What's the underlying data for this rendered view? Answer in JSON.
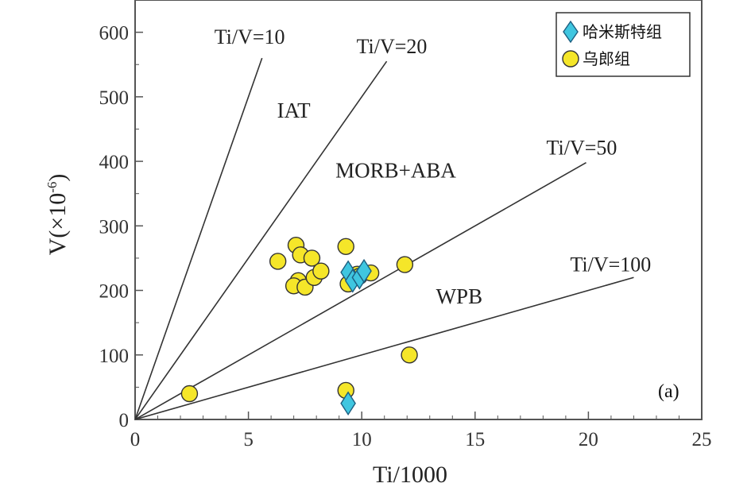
{
  "chart_data": {
    "type": "scatter",
    "title": "",
    "xlabel": "Ti/1000",
    "ylabel_prefix": "V(×10",
    "ylabel_exp": "-6",
    "ylabel_suffix": ")",
    "xlim": [
      0,
      25
    ],
    "ylim": [
      0,
      650
    ],
    "xticks": [
      0,
      5,
      10,
      15,
      20,
      25
    ],
    "yticks": [
      0,
      100,
      200,
      300,
      400,
      500,
      600
    ],
    "panel_label": "(a)",
    "ratio_lines": [
      {
        "label": "Ti/V=10",
        "ratio": 10,
        "x_end": 5.6
      },
      {
        "label": "Ti/V=20",
        "ratio": 20,
        "x_end": 11.1
      },
      {
        "label": "Ti/V=50",
        "ratio": 50,
        "x_end": 19.9
      },
      {
        "label": "Ti/V=100",
        "ratio": 100,
        "x_end": 22.0
      }
    ],
    "fields": [
      {
        "label": "IAT",
        "x": 7.0,
        "y": 468
      },
      {
        "label": "MORB+ABA",
        "x": 11.5,
        "y": 375
      },
      {
        "label": "WPB",
        "x": 14.3,
        "y": 180
      }
    ],
    "series": [
      {
        "name": "哈米斯特组",
        "marker": "diamond",
        "color": "#3fc6e0",
        "points": [
          [
            9.4,
            228
          ],
          [
            9.6,
            215
          ],
          [
            9.9,
            220
          ],
          [
            10.1,
            230
          ],
          [
            9.4,
            25
          ]
        ]
      },
      {
        "name": "乌郎组",
        "marker": "circle",
        "color": "#f5e629",
        "points": [
          [
            6.3,
            245
          ],
          [
            7.1,
            270
          ],
          [
            7.3,
            255
          ],
          [
            7.2,
            215
          ],
          [
            7.0,
            207
          ],
          [
            7.5,
            205
          ],
          [
            7.8,
            250
          ],
          [
            7.9,
            220
          ],
          [
            8.2,
            230
          ],
          [
            9.3,
            268
          ],
          [
            9.4,
            210
          ],
          [
            9.8,
            225
          ],
          [
            9.9,
            222
          ],
          [
            10.4,
            227
          ],
          [
            11.9,
            240
          ],
          [
            12.1,
            100
          ],
          [
            2.4,
            40
          ],
          [
            9.3,
            45
          ]
        ]
      }
    ],
    "legend": {
      "position": "top-right"
    }
  }
}
